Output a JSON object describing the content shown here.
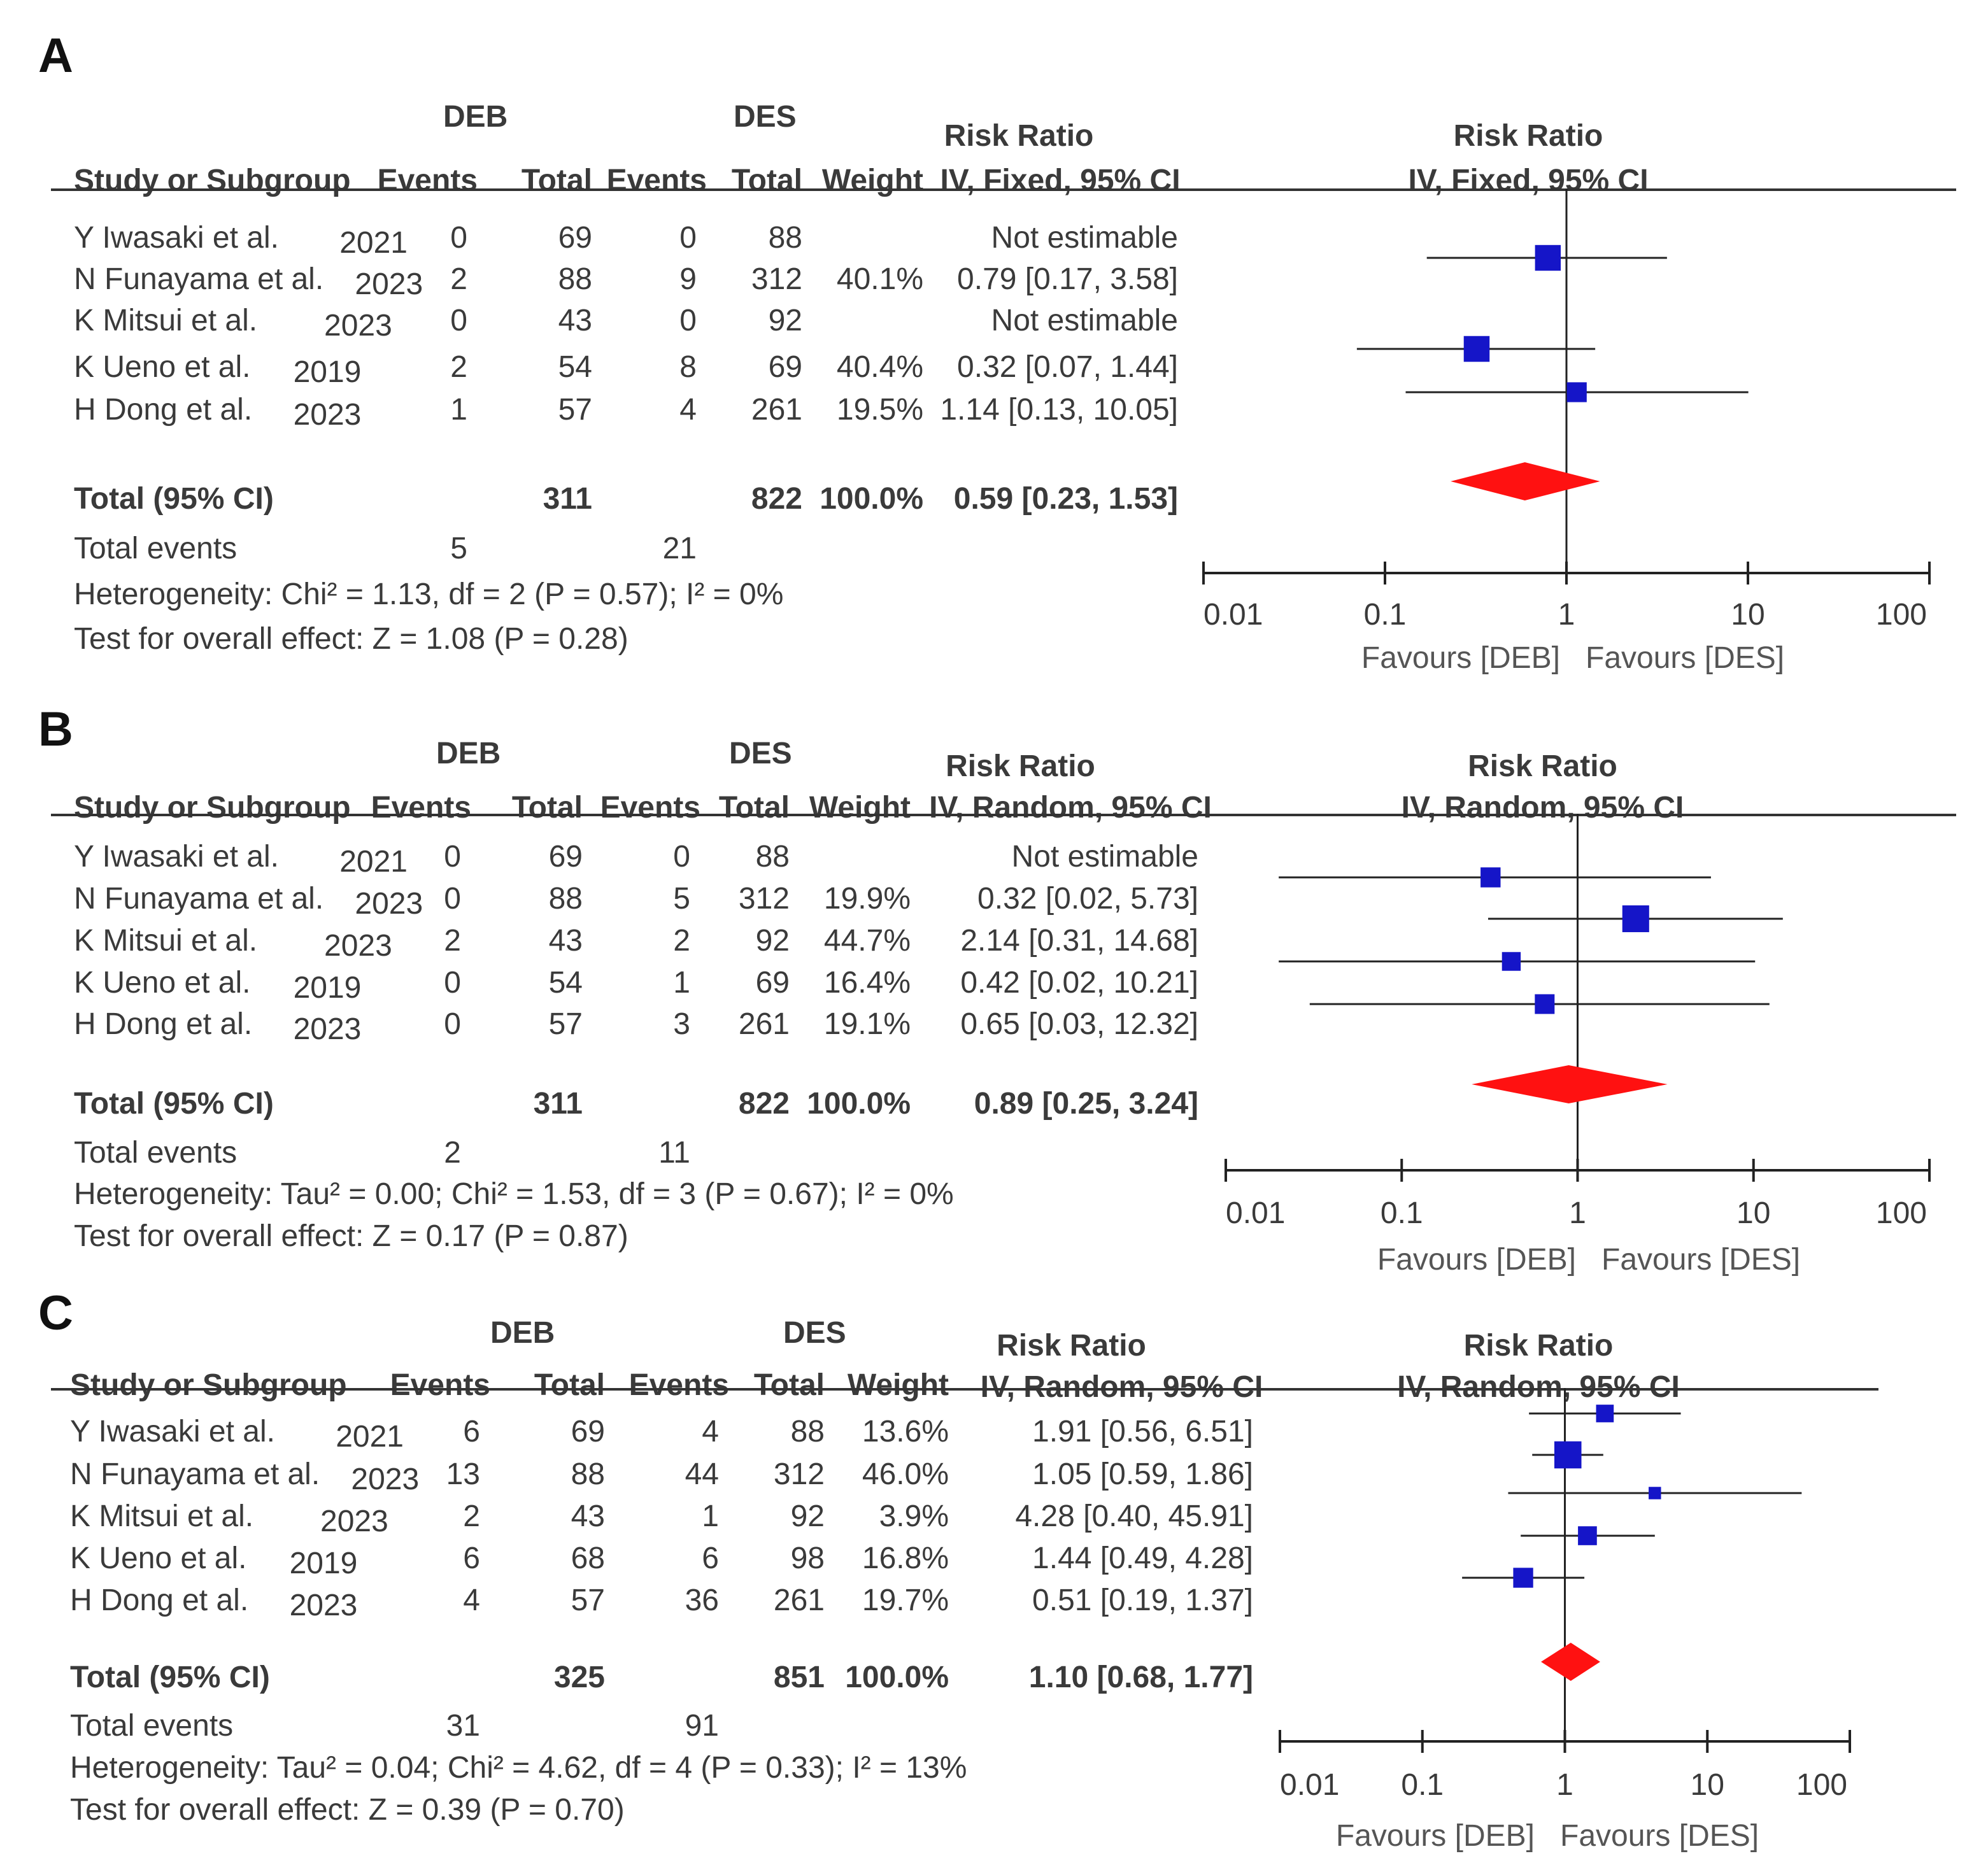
{
  "colors": {
    "marker": "#1515c8",
    "diamond": "#ff1111",
    "line": "#222222"
  },
  "panels": [
    {
      "label": "A",
      "group1": "DEB",
      "group2": "DES",
      "headers": {
        "study": "Study or Subgroup",
        "ev1": "Events",
        "tot1": "Total",
        "ev2": "Events",
        "tot2": "Total",
        "weight": "Weight",
        "rr1": "Risk Ratio",
        "rr2": "IV, Fixed, 95% CI",
        "plot1": "Risk Ratio",
        "plot2": "IV, Fixed, 95% CI"
      },
      "studies": [
        {
          "name": "Y Iwasaki et al.",
          "year": "2021",
          "ev1": "0",
          "tot1": "69",
          "ev2": "0",
          "tot2": "88",
          "weight": "",
          "ci": "Not estimable"
        },
        {
          "name": "N Funayama et al.",
          "year": "2023",
          "ev1": "2",
          "tot1": "88",
          "ev2": "9",
          "tot2": "312",
          "weight": "40.1%",
          "ci": "0.79 [0.17, 3.58]"
        },
        {
          "name": "K Mitsui et al.",
          "year": "2023",
          "ev1": "0",
          "tot1": "43",
          "ev2": "0",
          "tot2": "92",
          "weight": "",
          "ci": "Not estimable"
        },
        {
          "name": "K Ueno et al.",
          "year": "2019",
          "ev1": "2",
          "tot1": "54",
          "ev2": "8",
          "tot2": "69",
          "weight": "40.4%",
          "ci": "0.32 [0.07, 1.44]"
        },
        {
          "name": "H Dong et al.",
          "year": "2023",
          "ev1": "1",
          "tot1": "57",
          "ev2": "4",
          "tot2": "261",
          "weight": "19.5%",
          "ci": "1.14 [0.13, 10.05]"
        }
      ],
      "total": {
        "label": "Total (95% CI)",
        "tot1": "311",
        "tot2": "822",
        "weight": "100.0%",
        "ci": "0.59 [0.23, 1.53]"
      },
      "events": {
        "label": "Total events",
        "ev1": "5",
        "ev2": "21"
      },
      "heterogeneity": "Heterogeneity: Chi² = 1.13, df = 2 (P = 0.57); I² = 0%",
      "overall": "Test for overall effect: Z = 1.08 (P = 0.28)",
      "axis": {
        "ticks": [
          "0.01",
          "0.1",
          "1",
          "10",
          "100"
        ],
        "favours_left": "Favours [DEB]",
        "favours_right": "Favours [DES]"
      }
    },
    {
      "label": "B",
      "group1": "DEB",
      "group2": "DES",
      "headers": {
        "study": "Study or Subgroup",
        "ev1": "Events",
        "tot1": "Total",
        "ev2": "Events",
        "tot2": "Total",
        "weight": "Weight",
        "rr1": "Risk Ratio",
        "rr2": "IV, Random, 95% CI",
        "plot1": "Risk Ratio",
        "plot2": "IV, Random, 95% CI"
      },
      "studies": [
        {
          "name": "Y Iwasaki et al.",
          "year": "2021",
          "ev1": "0",
          "tot1": "69",
          "ev2": "0",
          "tot2": "88",
          "weight": "",
          "ci": "Not estimable"
        },
        {
          "name": "N Funayama et al.",
          "year": "2023",
          "ev1": "0",
          "tot1": "88",
          "ev2": "5",
          "tot2": "312",
          "weight": "19.9%",
          "ci": "0.32 [0.02, 5.73]"
        },
        {
          "name": "K Mitsui et al.",
          "year": "2023",
          "ev1": "2",
          "tot1": "43",
          "ev2": "2",
          "tot2": "92",
          "weight": "44.7%",
          "ci": "2.14 [0.31, 14.68]"
        },
        {
          "name": "K Ueno et al.",
          "year": "2019",
          "ev1": "0",
          "tot1": "54",
          "ev2": "1",
          "tot2": "69",
          "weight": "16.4%",
          "ci": "0.42 [0.02, 10.21]"
        },
        {
          "name": "H Dong et al.",
          "year": "2023",
          "ev1": "0",
          "tot1": "57",
          "ev2": "3",
          "tot2": "261",
          "weight": "19.1%",
          "ci": "0.65 [0.03, 12.32]"
        }
      ],
      "total": {
        "label": "Total (95% CI)",
        "tot1": "311",
        "tot2": "822",
        "weight": "100.0%",
        "ci": "0.89 [0.25, 3.24]"
      },
      "events": {
        "label": "Total events",
        "ev1": "2",
        "ev2": "11"
      },
      "heterogeneity": "Heterogeneity: Tau² = 0.00; Chi² = 1.53, df = 3 (P = 0.67); I² = 0%",
      "overall": "Test for overall effect: Z = 0.17 (P = 0.87)",
      "axis": {
        "ticks": [
          "0.01",
          "0.1",
          "1",
          "10",
          "100"
        ],
        "favours_left": "Favours [DEB]",
        "favours_right": "Favours [DES]"
      }
    },
    {
      "label": "C",
      "group1": "DEB",
      "group2": "DES",
      "headers": {
        "study": "Study or Subgroup",
        "ev1": "Events",
        "tot1": "Total",
        "ev2": "Events",
        "tot2": "Total",
        "weight": "Weight",
        "rr1": "Risk Ratio",
        "rr2": "IV, Random, 95% CI",
        "plot1": "Risk Ratio",
        "plot2": "IV, Random, 95% CI"
      },
      "studies": [
        {
          "name": "Y Iwasaki et al.",
          "year": "2021",
          "ev1": "6",
          "tot1": "69",
          "ev2": "4",
          "tot2": "88",
          "weight": "13.6%",
          "ci": "1.91 [0.56, 6.51]"
        },
        {
          "name": "N Funayama et al.",
          "year": "2023",
          "ev1": "13",
          "tot1": "88",
          "ev2": "44",
          "tot2": "312",
          "weight": "46.0%",
          "ci": "1.05 [0.59, 1.86]"
        },
        {
          "name": "K Mitsui et al.",
          "year": "2023",
          "ev1": "2",
          "tot1": "43",
          "ev2": "1",
          "tot2": "92",
          "weight": "3.9%",
          "ci": "4.28 [0.40, 45.91]"
        },
        {
          "name": "K Ueno et al.",
          "year": "2019",
          "ev1": "6",
          "tot1": "68",
          "ev2": "6",
          "tot2": "98",
          "weight": "16.8%",
          "ci": "1.44 [0.49, 4.28]"
        },
        {
          "name": "H Dong et al.",
          "year": "2023",
          "ev1": "4",
          "tot1": "57",
          "ev2": "36",
          "tot2": "261",
          "weight": "19.7%",
          "ci": "0.51 [0.19, 1.37]"
        }
      ],
      "total": {
        "label": "Total (95% CI)",
        "tot1": "325",
        "tot2": "851",
        "weight": "100.0%",
        "ci": "1.10 [0.68, 1.77]"
      },
      "events": {
        "label": "Total events",
        "ev1": "31",
        "ev2": "91"
      },
      "heterogeneity": "Heterogeneity: Tau² = 0.04; Chi² = 4.62, df = 4 (P = 0.33); I² = 13%",
      "overall": "Test for overall effect: Z = 0.39 (P = 0.70)",
      "axis": {
        "ticks": [
          "0.01",
          "0.1",
          "1",
          "10",
          "100"
        ],
        "favours_left": "Favours [DEB]",
        "favours_right": "Favours [DES]"
      }
    }
  ],
  "chart_data": [
    {
      "type": "forest",
      "scale": "log",
      "xlim": [
        0.01,
        100
      ],
      "reference": 1,
      "series": [
        {
          "name": "N Funayama et al. 2023",
          "rr": 0.79,
          "lo": 0.17,
          "hi": 3.58,
          "weight": 40.1
        },
        {
          "name": "K Ueno et al. 2019",
          "rr": 0.32,
          "lo": 0.07,
          "hi": 1.44,
          "weight": 40.4
        },
        {
          "name": "H Dong et al. 2023",
          "rr": 1.14,
          "lo": 0.13,
          "hi": 10.05,
          "weight": 19.5
        }
      ],
      "pooled": {
        "rr": 0.59,
        "lo": 0.23,
        "hi": 1.53
      }
    },
    {
      "type": "forest",
      "scale": "log",
      "xlim": [
        0.01,
        100
      ],
      "reference": 1,
      "series": [
        {
          "name": "N Funayama et al. 2023",
          "rr": 0.32,
          "lo": 0.02,
          "hi": 5.73,
          "weight": 19.9
        },
        {
          "name": "K Mitsui et al. 2023",
          "rr": 2.14,
          "lo": 0.31,
          "hi": 14.68,
          "weight": 44.7
        },
        {
          "name": "K Ueno et al. 2019",
          "rr": 0.42,
          "lo": 0.02,
          "hi": 10.21,
          "weight": 16.4
        },
        {
          "name": "H Dong et al. 2023",
          "rr": 0.65,
          "lo": 0.03,
          "hi": 12.32,
          "weight": 19.1
        }
      ],
      "pooled": {
        "rr": 0.89,
        "lo": 0.25,
        "hi": 3.24
      }
    },
    {
      "type": "forest",
      "scale": "log",
      "xlim": [
        0.01,
        100
      ],
      "reference": 1,
      "series": [
        {
          "name": "Y Iwasaki et al. 2021",
          "rr": 1.91,
          "lo": 0.56,
          "hi": 6.51,
          "weight": 13.6
        },
        {
          "name": "N Funayama et al. 2023",
          "rr": 1.05,
          "lo": 0.59,
          "hi": 1.86,
          "weight": 46.0
        },
        {
          "name": "K Mitsui et al. 2023",
          "rr": 4.28,
          "lo": 0.4,
          "hi": 45.91,
          "weight": 3.9
        },
        {
          "name": "K Ueno et al. 2019",
          "rr": 1.44,
          "lo": 0.49,
          "hi": 4.28,
          "weight": 16.8
        },
        {
          "name": "H Dong et al. 2023",
          "rr": 0.51,
          "lo": 0.19,
          "hi": 1.37,
          "weight": 19.7
        }
      ],
      "pooled": {
        "rr": 1.1,
        "lo": 0.68,
        "hi": 1.77
      }
    }
  ]
}
